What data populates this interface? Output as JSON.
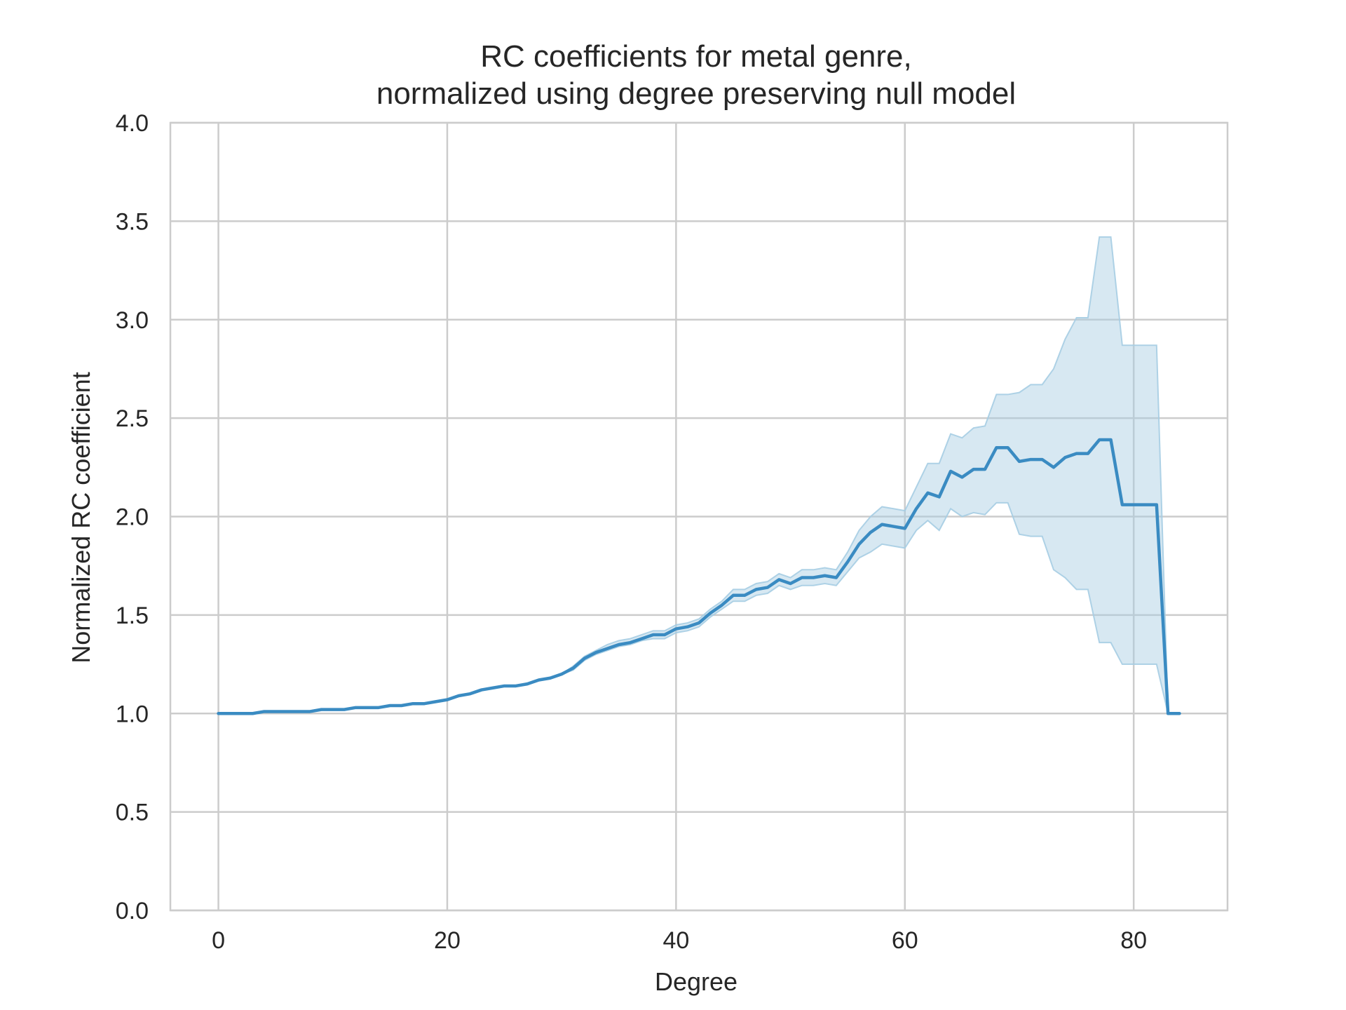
{
  "chart_data": {
    "type": "line",
    "title": [
      "RC coefficients for metal genre,",
      "normalized using degree preserving null model"
    ],
    "xlabel": "Degree",
    "ylabel": "Normalized RC coefficient",
    "xlim": [
      -4.2,
      88.2
    ],
    "ylim": [
      0.0,
      4.0
    ],
    "xticks": [
      0,
      20,
      40,
      60,
      80
    ],
    "yticks": [
      0.0,
      0.5,
      1.0,
      1.5,
      2.0,
      2.5,
      3.0,
      3.5,
      4.0
    ],
    "xtick_labels": [
      "0",
      "20",
      "40",
      "60",
      "80"
    ],
    "ytick_labels": [
      "0.0",
      "0.5",
      "1.0",
      "1.5",
      "2.0",
      "2.5",
      "3.0",
      "3.5",
      "4.0"
    ],
    "grid": true,
    "colors": {
      "line": "#3a8bc2",
      "band": "#a6cde3",
      "grid": "#cccccc"
    },
    "series": [
      {
        "x": [
          0,
          1,
          2,
          3,
          4,
          5,
          6,
          7,
          8,
          9,
          10,
          11,
          12,
          13,
          14,
          15,
          16,
          17,
          18,
          19,
          20,
          21,
          22,
          23,
          24,
          25,
          26,
          27,
          28,
          29,
          30,
          31,
          32,
          33,
          34,
          35,
          36,
          37,
          38,
          39,
          40,
          41,
          42,
          43,
          44,
          45,
          46,
          47,
          48,
          49,
          50,
          51,
          52,
          53,
          54,
          55,
          56,
          57,
          58,
          59,
          60,
          61,
          62,
          63,
          64,
          65,
          66,
          67,
          68,
          69,
          70,
          71,
          72,
          73,
          74,
          75,
          76,
          77,
          78,
          79,
          80,
          81,
          82,
          83,
          84
        ],
        "y": [
          1.0,
          1.0,
          1.0,
          1.0,
          1.01,
          1.01,
          1.01,
          1.01,
          1.01,
          1.02,
          1.02,
          1.02,
          1.03,
          1.03,
          1.03,
          1.04,
          1.04,
          1.05,
          1.05,
          1.06,
          1.07,
          1.09,
          1.1,
          1.12,
          1.13,
          1.14,
          1.14,
          1.15,
          1.17,
          1.18,
          1.2,
          1.23,
          1.28,
          1.31,
          1.33,
          1.35,
          1.36,
          1.38,
          1.4,
          1.4,
          1.43,
          1.44,
          1.46,
          1.51,
          1.55,
          1.6,
          1.6,
          1.63,
          1.64,
          1.68,
          1.66,
          1.69,
          1.69,
          1.7,
          1.69,
          1.77,
          1.86,
          1.92,
          1.96,
          1.95,
          1.94,
          2.04,
          2.12,
          2.1,
          2.23,
          2.2,
          2.24,
          2.24,
          2.35,
          2.35,
          2.28,
          2.29,
          2.29,
          2.25,
          2.3,
          2.32,
          2.32,
          2.39,
          2.39,
          2.06,
          2.06,
          2.06,
          2.06,
          1.0,
          1.0
        ],
        "ci_lower": [
          1.0,
          1.0,
          1.0,
          1.0,
          1.01,
          1.01,
          1.01,
          1.01,
          1.01,
          1.02,
          1.02,
          1.02,
          1.03,
          1.03,
          1.03,
          1.04,
          1.04,
          1.05,
          1.05,
          1.06,
          1.07,
          1.09,
          1.1,
          1.12,
          1.13,
          1.14,
          1.14,
          1.15,
          1.17,
          1.18,
          1.2,
          1.22,
          1.27,
          1.3,
          1.32,
          1.34,
          1.35,
          1.37,
          1.38,
          1.38,
          1.41,
          1.42,
          1.44,
          1.49,
          1.53,
          1.57,
          1.57,
          1.6,
          1.61,
          1.65,
          1.63,
          1.65,
          1.65,
          1.66,
          1.65,
          1.72,
          1.79,
          1.82,
          1.86,
          1.85,
          1.84,
          1.93,
          1.98,
          1.93,
          2.04,
          2.0,
          2.02,
          2.01,
          2.07,
          2.07,
          1.91,
          1.9,
          1.9,
          1.73,
          1.69,
          1.63,
          1.63,
          1.36,
          1.36,
          1.25,
          1.25,
          1.25,
          1.25,
          1.0,
          1.0
        ],
        "ci_upper": [
          1.0,
          1.0,
          1.0,
          1.0,
          1.01,
          1.01,
          1.01,
          1.01,
          1.01,
          1.02,
          1.02,
          1.02,
          1.03,
          1.03,
          1.03,
          1.04,
          1.04,
          1.05,
          1.05,
          1.06,
          1.07,
          1.09,
          1.1,
          1.12,
          1.13,
          1.14,
          1.14,
          1.15,
          1.17,
          1.18,
          1.2,
          1.24,
          1.29,
          1.32,
          1.35,
          1.37,
          1.38,
          1.4,
          1.42,
          1.42,
          1.45,
          1.46,
          1.48,
          1.53,
          1.57,
          1.63,
          1.63,
          1.66,
          1.67,
          1.71,
          1.69,
          1.73,
          1.73,
          1.74,
          1.73,
          1.82,
          1.93,
          2.0,
          2.05,
          2.04,
          2.03,
          2.15,
          2.27,
          2.27,
          2.42,
          2.4,
          2.45,
          2.46,
          2.62,
          2.62,
          2.63,
          2.67,
          2.67,
          2.75,
          2.9,
          3.01,
          3.01,
          3.42,
          3.42,
          2.87,
          2.87,
          2.87,
          2.87,
          1.0,
          1.0
        ]
      }
    ]
  }
}
